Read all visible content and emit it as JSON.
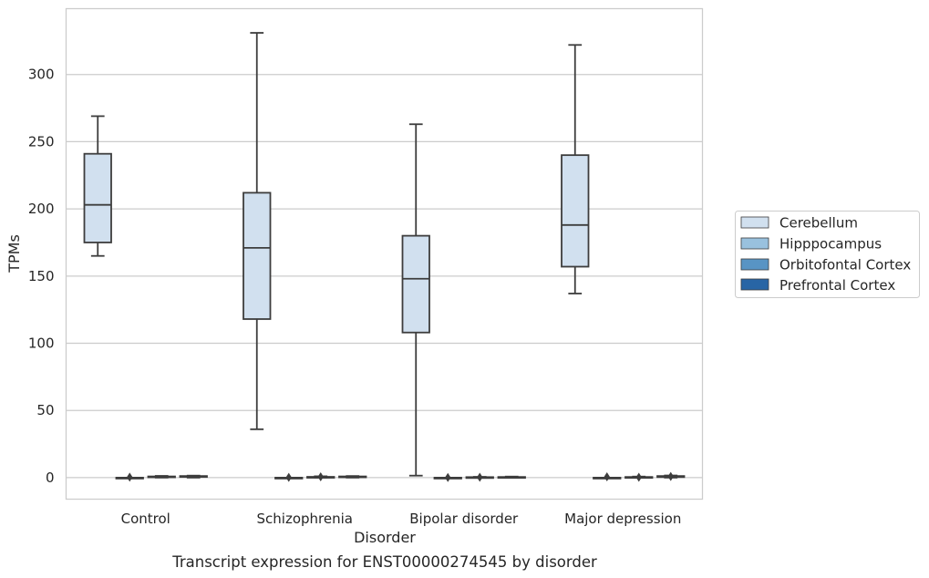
{
  "chart_data": {
    "type": "boxplot",
    "caption": "Transcript expression for ENST00000274545 by disorder",
    "xlabel": "Disorder",
    "ylabel": "TPMs",
    "ylim": [
      -16,
      349
    ],
    "yticks": [
      0,
      50,
      100,
      150,
      200,
      250,
      300
    ],
    "grid": "horizontal",
    "legend_position": "right",
    "categories": [
      "Control",
      "Schizophrenia",
      "Bipolar disorder",
      "Major depression"
    ],
    "series": [
      {
        "name": "Cerebellum",
        "color": "#d1e0ef",
        "boxes": [
          {
            "whislo": 165,
            "q1": 175,
            "med": 203,
            "q3": 241,
            "whishi": 269,
            "fliers": []
          },
          {
            "whislo": 36,
            "q1": 118,
            "med": 171,
            "q3": 212,
            "whishi": 331,
            "fliers": []
          },
          {
            "whislo": 1.5,
            "q1": 108,
            "med": 148,
            "q3": 180,
            "whishi": 263,
            "fliers": []
          },
          {
            "whislo": 137,
            "q1": 157,
            "med": 188,
            "q3": 240,
            "whishi": 322,
            "fliers": []
          }
        ]
      },
      {
        "name": "Hipppocampus",
        "color": "#99c1de",
        "boxes": [
          {
            "whislo": 0,
            "q1": 0,
            "med": 0,
            "q3": 0,
            "whishi": 0,
            "fliers": [
              0.4
            ]
          },
          {
            "whislo": 0,
            "q1": 0,
            "med": 0,
            "q3": 0,
            "whishi": 0,
            "fliers": [
              0.2
            ]
          },
          {
            "whislo": 0,
            "q1": 0,
            "med": 0,
            "q3": 0,
            "whishi": 0,
            "fliers": [
              0.1
            ]
          },
          {
            "whislo": 0,
            "q1": 0,
            "med": 0,
            "q3": 0,
            "whishi": 0,
            "fliers": [
              0.6
            ]
          }
        ]
      },
      {
        "name": "Orbitofontal Cortex",
        "color": "#5894c4",
        "boxes": [
          {
            "whislo": 0,
            "q1": 0.3,
            "med": 0.6,
            "q3": 0.9,
            "whishi": 1.3,
            "fliers": []
          },
          {
            "whislo": 0,
            "q1": 0.1,
            "med": 0.3,
            "q3": 0.6,
            "whishi": 1.0,
            "fliers": [
              0.6
            ]
          },
          {
            "whislo": 0,
            "q1": 0.05,
            "med": 0.2,
            "q3": 0.4,
            "whishi": 0.6,
            "fliers": [
              0.3
            ]
          },
          {
            "whislo": 0,
            "q1": 0.1,
            "med": 0.3,
            "q3": 0.5,
            "whishi": 0.8,
            "fliers": [
              0.3
            ]
          }
        ]
      },
      {
        "name": "Prefrontal Cortex",
        "color": "#2865a5",
        "boxes": [
          {
            "whislo": 0,
            "q1": 0.5,
            "med": 0.9,
            "q3": 1.2,
            "whishi": 1.5,
            "fliers": []
          },
          {
            "whislo": 0,
            "q1": 0.3,
            "med": 0.6,
            "q3": 0.9,
            "whishi": 1.2,
            "fliers": []
          },
          {
            "whislo": 0,
            "q1": 0.1,
            "med": 0.3,
            "q3": 0.5,
            "whishi": 0.8,
            "fliers": []
          },
          {
            "whislo": 0,
            "q1": 0.4,
            "med": 0.8,
            "q3": 1.2,
            "whishi": 1.6,
            "fliers": [
              0.9
            ]
          }
        ]
      }
    ]
  }
}
